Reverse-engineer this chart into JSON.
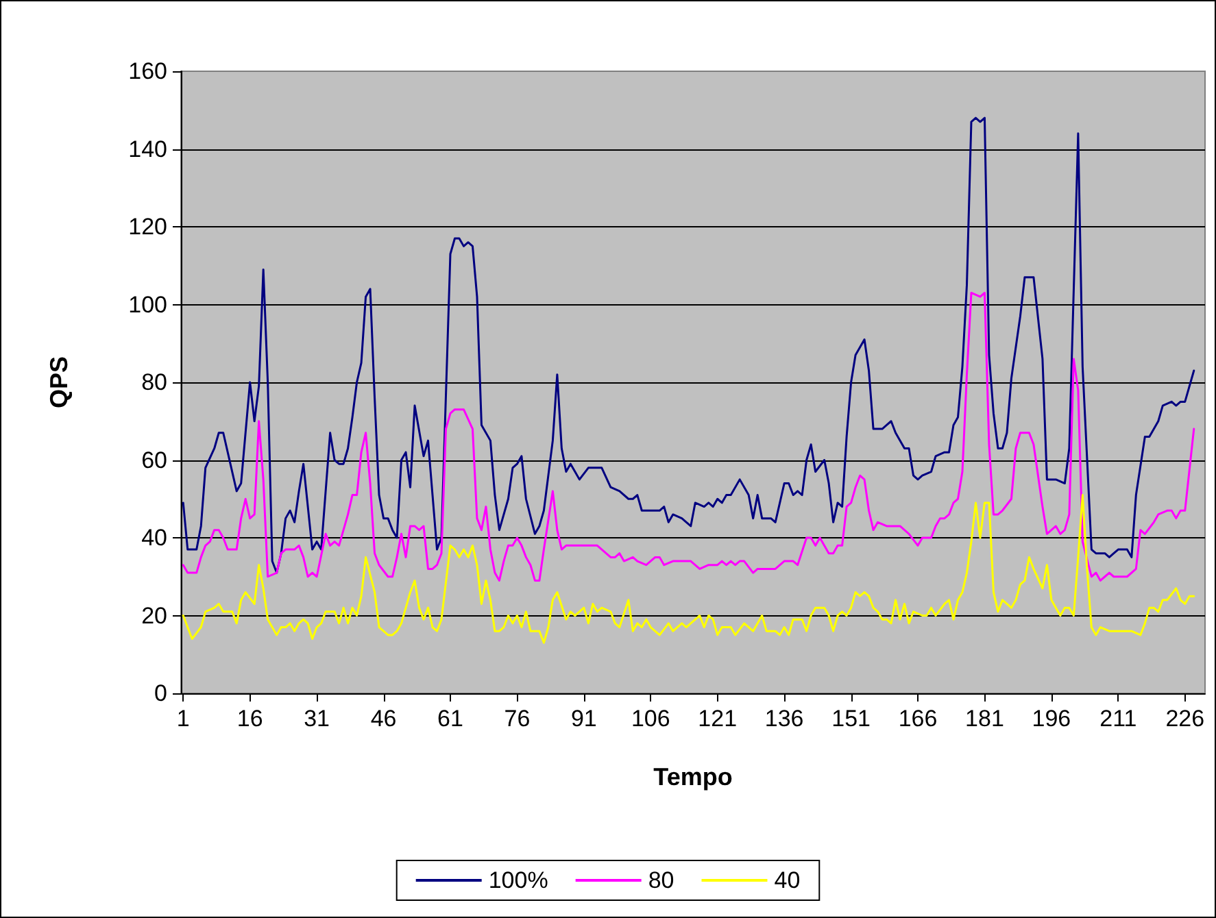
{
  "chart_data": {
    "type": "line",
    "xlabel": "Tempo",
    "ylabel": "QPS",
    "xlim": [
      0.5,
      230.5
    ],
    "xticks": [
      1,
      16,
      31,
      46,
      61,
      76,
      91,
      106,
      121,
      136,
      151,
      166,
      181,
      196,
      211,
      226
    ],
    "ylim": [
      0,
      160
    ],
    "yticks": [
      0,
      20,
      40,
      60,
      80,
      100,
      120,
      140,
      160
    ],
    "grid": "y",
    "legend": "bottom",
    "marker": "none",
    "line_style": "solid",
    "series": [
      {
        "name": "100%",
        "color": "#000080",
        "x": [
          1,
          2,
          4,
          5,
          6,
          8,
          9,
          10,
          11,
          13,
          14,
          16,
          17,
          18,
          19,
          20,
          21,
          22,
          23,
          24,
          25,
          26,
          27,
          28,
          30,
          31,
          32,
          34,
          35,
          36,
          37,
          38,
          39,
          40,
          41,
          42,
          43,
          44,
          45,
          46,
          47,
          48,
          49,
          50,
          51,
          52,
          53,
          55,
          56,
          57,
          58,
          59,
          61,
          62,
          63,
          64,
          65,
          66,
          67,
          68,
          70,
          71,
          72,
          74,
          75,
          76,
          77,
          78,
          80,
          81,
          82,
          84,
          85,
          86,
          87,
          88,
          89,
          90,
          92,
          95,
          97,
          99,
          101,
          102,
          103,
          104,
          108,
          109,
          110,
          111,
          113,
          115,
          116,
          118,
          119,
          120,
          121,
          122,
          123,
          124,
          126,
          128,
          129,
          130,
          131,
          133,
          134,
          136,
          137,
          138,
          139,
          140,
          141,
          142,
          143,
          145,
          146,
          147,
          148,
          149,
          150,
          151,
          152,
          154,
          155,
          156,
          158,
          159,
          160,
          161,
          163,
          164,
          165,
          166,
          167,
          169,
          170,
          172,
          173,
          174,
          175,
          176,
          177,
          178,
          179,
          180,
          181,
          182,
          183,
          184,
          185,
          186,
          187,
          189,
          190,
          191,
          192,
          194,
          195,
          197,
          199,
          200,
          202,
          203,
          205,
          206,
          208,
          209,
          210,
          211,
          213,
          214,
          215,
          217,
          218,
          220,
          221,
          223,
          224,
          225,
          226,
          228
        ],
        "values": [
          49,
          37,
          37,
          43,
          58,
          63,
          67,
          67,
          62,
          52,
          54,
          80,
          70,
          79,
          109,
          80,
          34,
          31,
          36,
          45,
          47,
          44,
          52,
          59,
          37,
          39,
          37,
          67,
          60,
          59,
          59,
          63,
          71,
          80,
          85,
          102,
          104,
          76,
          51,
          45,
          45,
          42,
          40,
          60,
          62,
          53,
          74,
          61,
          65,
          51,
          37,
          40,
          113,
          117,
          117,
          115,
          116,
          115,
          102,
          69,
          65,
          51,
          42,
          50,
          58,
          59,
          61,
          50,
          41,
          43,
          47,
          65,
          82,
          63,
          57,
          59,
          57,
          55,
          58,
          58,
          53,
          52,
          50,
          50,
          51,
          47,
          47,
          48,
          44,
          46,
          45,
          43,
          49,
          48,
          49,
          48,
          50,
          49,
          51,
          51,
          55,
          51,
          45,
          51,
          45,
          45,
          44,
          54,
          54,
          51,
          52,
          51,
          60,
          64,
          57,
          60,
          54,
          44,
          49,
          48,
          66,
          80,
          87,
          91,
          83,
          68,
          68,
          69,
          70,
          67,
          63,
          63,
          56,
          55,
          56,
          57,
          61,
          62,
          62,
          69,
          71,
          84,
          105,
          147,
          148,
          147,
          148,
          87,
          72,
          63,
          63,
          67,
          81,
          97,
          107,
          107,
          107,
          86,
          55,
          55,
          54,
          63,
          144,
          84,
          37,
          36,
          36,
          35,
          36,
          37,
          37,
          35,
          51,
          66,
          66,
          70,
          74,
          75,
          74,
          75,
          75,
          83
        ]
      },
      {
        "name": "80",
        "color": "#ff00ff",
        "x": [
          1,
          2,
          4,
          5,
          6,
          7,
          8,
          9,
          10,
          11,
          13,
          14,
          15,
          16,
          17,
          18,
          19,
          20,
          22,
          23,
          24,
          26,
          27,
          28,
          29,
          30,
          31,
          33,
          34,
          35,
          36,
          37,
          38,
          39,
          40,
          41,
          42,
          43,
          44,
          45,
          47,
          48,
          49,
          50,
          51,
          52,
          53,
          54,
          55,
          56,
          57,
          58,
          59,
          60,
          61,
          62,
          64,
          66,
          67,
          68,
          69,
          70,
          71,
          72,
          73,
          74,
          75,
          76,
          77,
          78,
          79,
          80,
          81,
          82,
          84,
          85,
          86,
          87,
          89,
          91,
          92,
          94,
          97,
          98,
          99,
          100,
          102,
          103,
          105,
          107,
          108,
          109,
          111,
          113,
          115,
          117,
          119,
          121,
          122,
          123,
          124,
          125,
          126,
          127,
          129,
          130,
          134,
          136,
          138,
          139,
          141,
          142,
          143,
          144,
          146,
          147,
          148,
          149,
          150,
          151,
          152,
          153,
          154,
          155,
          156,
          157,
          159,
          162,
          163,
          164,
          166,
          167,
          169,
          170,
          171,
          172,
          173,
          174,
          175,
          176,
          177,
          178,
          180,
          181,
          182,
          183,
          184,
          185,
          187,
          188,
          189,
          191,
          192,
          194,
          195,
          197,
          198,
          199,
          200,
          201,
          202,
          203,
          205,
          206,
          207,
          208,
          209,
          210,
          213,
          215,
          216,
          217,
          219,
          220,
          222,
          223,
          224,
          225,
          226,
          228
        ],
        "values": [
          33,
          31,
          31,
          35,
          38,
          39,
          42,
          42,
          40,
          37,
          37,
          45,
          50,
          45,
          46,
          70,
          55,
          30,
          31,
          36,
          37,
          37,
          38,
          35,
          30,
          31,
          30,
          41,
          38,
          39,
          38,
          42,
          46,
          51,
          51,
          62,
          67,
          54,
          36,
          33,
          30,
          30,
          35,
          41,
          35,
          43,
          43,
          42,
          43,
          32,
          32,
          33,
          36,
          68,
          72,
          73,
          73,
          68,
          45,
          42,
          48,
          37,
          31,
          29,
          34,
          38,
          38,
          40,
          38,
          35,
          33,
          29,
          29,
          37,
          52,
          42,
          37,
          38,
          38,
          38,
          38,
          38,
          35,
          35,
          36,
          34,
          35,
          34,
          33,
          35,
          35,
          33,
          34,
          34,
          34,
          32,
          33,
          33,
          34,
          33,
          34,
          33,
          34,
          34,
          31,
          32,
          32,
          34,
          34,
          33,
          40,
          40,
          38,
          40,
          36,
          36,
          38,
          38,
          48,
          49,
          53,
          56,
          55,
          47,
          42,
          44,
          43,
          43,
          42,
          41,
          38,
          40,
          40,
          43,
          45,
          45,
          46,
          49,
          50,
          57,
          82,
          103,
          102,
          103,
          64,
          46,
          46,
          47,
          50,
          63,
          67,
          67,
          64,
          48,
          41,
          43,
          41,
          42,
          46,
          86,
          78,
          39,
          30,
          31,
          29,
          30,
          31,
          30,
          30,
          32,
          42,
          41,
          44,
          46,
          47,
          47,
          45,
          47,
          47,
          68
        ]
      },
      {
        "name": "40",
        "color": "#ffff00",
        "x": [
          1,
          3,
          5,
          6,
          8,
          9,
          10,
          12,
          13,
          14,
          15,
          17,
          18,
          19,
          20,
          22,
          23,
          24,
          25,
          26,
          27,
          28,
          29,
          30,
          31,
          32,
          33,
          35,
          36,
          37,
          38,
          39,
          40,
          41,
          42,
          44,
          45,
          46,
          47,
          48,
          49,
          50,
          52,
          53,
          54,
          55,
          56,
          57,
          58,
          59,
          61,
          62,
          63,
          64,
          65,
          66,
          67,
          68,
          69,
          70,
          71,
          72,
          73,
          74,
          75,
          76,
          77,
          78,
          79,
          81,
          82,
          83,
          84,
          85,
          87,
          88,
          89,
          91,
          92,
          93,
          94,
          95,
          97,
          98,
          99,
          101,
          102,
          103,
          104,
          105,
          106,
          108,
          110,
          111,
          113,
          114,
          115,
          117,
          118,
          119,
          120,
          121,
          122,
          124,
          125,
          127,
          129,
          131,
          132,
          134,
          135,
          136,
          137,
          138,
          140,
          141,
          142,
          143,
          145,
          146,
          147,
          148,
          149,
          150,
          151,
          152,
          153,
          154,
          155,
          156,
          157,
          158,
          159,
          160,
          161,
          162,
          163,
          164,
          165,
          167,
          168,
          169,
          170,
          172,
          173,
          174,
          175,
          176,
          177,
          178,
          179,
          180,
          181,
          182,
          183,
          184,
          185,
          186,
          187,
          188,
          189,
          190,
          191,
          192,
          194,
          195,
          196,
          197,
          198,
          199,
          200,
          201,
          202,
          203,
          204,
          205,
          206,
          207,
          209,
          214,
          216,
          217,
          218,
          219,
          220,
          221,
          222,
          224,
          225,
          226,
          227,
          228
        ],
        "values": [
          20,
          14,
          17,
          21,
          22,
          23,
          21,
          21,
          18,
          24,
          26,
          23,
          33,
          27,
          19,
          15,
          17,
          17,
          18,
          16,
          18,
          19,
          18,
          14,
          17,
          18,
          21,
          21,
          18,
          22,
          18,
          22,
          20,
          25,
          35,
          26,
          17,
          16,
          15,
          15,
          16,
          18,
          26,
          29,
          22,
          19,
          22,
          17,
          16,
          19,
          38,
          37,
          35,
          37,
          35,
          38,
          33,
          23,
          29,
          24,
          16,
          16,
          17,
          20,
          18,
          20,
          17,
          21,
          16,
          16,
          13,
          17,
          24,
          26,
          19,
          21,
          20,
          22,
          18,
          23,
          21,
          22,
          21,
          18,
          17,
          24,
          16,
          18,
          17,
          19,
          17,
          15,
          18,
          16,
          18,
          17,
          18,
          20,
          17,
          20,
          19,
          15,
          17,
          17,
          15,
          18,
          16,
          20,
          16,
          16,
          15,
          17,
          15,
          19,
          19,
          16,
          20,
          22,
          22,
          20,
          16,
          20,
          21,
          20,
          22,
          26,
          25,
          26,
          25,
          22,
          21,
          19,
          19,
          18,
          24,
          19,
          23,
          18,
          21,
          20,
          20,
          22,
          20,
          23,
          24,
          19,
          24,
          26,
          31,
          39,
          49,
          40,
          49,
          49,
          26,
          21,
          24,
          23,
          22,
          24,
          28,
          29,
          35,
          32,
          27,
          33,
          24,
          22,
          20,
          22,
          22,
          20,
          35,
          51,
          32,
          17,
          15,
          17,
          16,
          16,
          15,
          18,
          22,
          22,
          21,
          24,
          24,
          27,
          24,
          23,
          25,
          25
        ]
      }
    ]
  }
}
